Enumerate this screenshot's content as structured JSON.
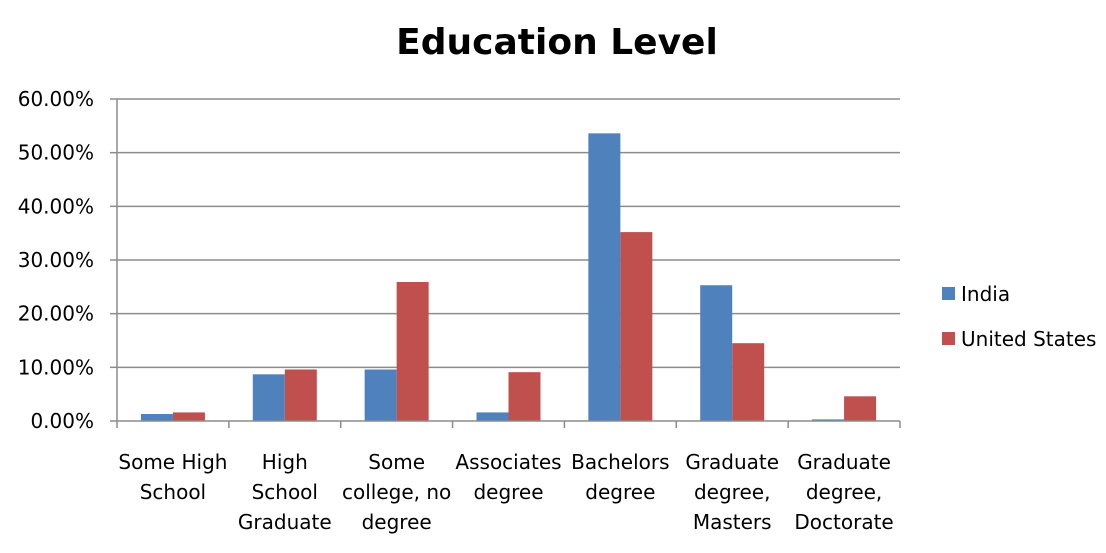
{
  "chart_data": {
    "type": "bar",
    "title": "Education Level",
    "xlabel": "",
    "ylabel": "",
    "ylim": [
      0,
      0.6
    ],
    "ytick_values": [
      0,
      0.1,
      0.2,
      0.3,
      0.4,
      0.5,
      0.6
    ],
    "ytick_labels": [
      "0.00%",
      "10.00%",
      "20.00%",
      "30.00%",
      "40.00%",
      "50.00%",
      "60.00%"
    ],
    "grid": true,
    "legend_position": "right",
    "categories": [
      [
        "Some High",
        "School"
      ],
      [
        "High",
        "School",
        "Graduate"
      ],
      [
        "Some",
        "college, no",
        "degree"
      ],
      [
        "Associates",
        "degree"
      ],
      [
        "Bachelors",
        "degree"
      ],
      [
        "Graduate",
        "degree,",
        "Masters"
      ],
      [
        "Graduate",
        "degree,",
        "Doctorate"
      ]
    ],
    "series": [
      {
        "name": "India",
        "color": "#4F81BD",
        "values": [
          0.013,
          0.087,
          0.096,
          0.016,
          0.536,
          0.253,
          0.003
        ]
      },
      {
        "name": "United States",
        "color": "#C0504D",
        "values": [
          0.016,
          0.096,
          0.259,
          0.091,
          0.352,
          0.145,
          0.046
        ]
      }
    ]
  }
}
